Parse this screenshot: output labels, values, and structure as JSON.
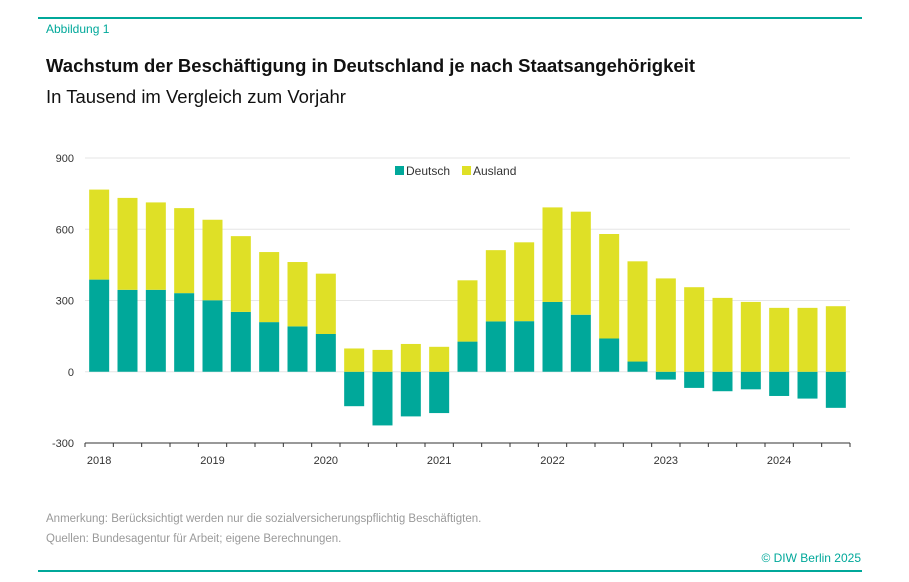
{
  "figure_label": "Abbildung 1",
  "title": "Wachstum der Beschäftigung in Deutschland je nach Staatsangehörigkeit",
  "subtitle": "In Tausend im Vergleich zum Vorjahr",
  "notes": {
    "remark": "Anmerkung: Berücksichtigt werden nur die sozialversicherungspflichtig Beschäftigten.",
    "sources": "Quellen: Bundesagentur für Arbeit; eigene Berechnungen."
  },
  "copyright": "© DIW Berlin 2025",
  "colors": {
    "accent": "#00a89a",
    "deutsch": "#00a89a",
    "ausland": "#dfe026"
  },
  "chart_data": {
    "type": "bar",
    "stacked": true,
    "title": "",
    "xlabel": "",
    "ylabel": "",
    "ylim": [
      -300,
      900
    ],
    "yticks": [
      900,
      600,
      300,
      0,
      -300
    ],
    "grid": true,
    "legend_position": "top-center",
    "year_labels": [
      "2018",
      "2019",
      "2020",
      "2021",
      "2022",
      "2023",
      "2024"
    ],
    "categories": [
      "2018 Q1",
      "2018 Q2",
      "2018 Q3",
      "2018 Q4",
      "2019 Q1",
      "2019 Q2",
      "2019 Q3",
      "2019 Q4",
      "2020 Q1",
      "2020 Q2",
      "2020 Q3",
      "2020 Q4",
      "2021 Q1",
      "2021 Q2",
      "2021 Q3",
      "2021 Q4",
      "2022 Q1",
      "2022 Q2",
      "2022 Q3",
      "2022 Q4",
      "2023 Q1",
      "2023 Q2",
      "2023 Q3",
      "2023 Q4",
      "2024 Q1",
      "2024 Q2",
      "2024 Q3"
    ],
    "series": [
      {
        "name": "Deutsch",
        "values": [
          388,
          345,
          345,
          331,
          301,
          252,
          209,
          191,
          159,
          -145,
          -226,
          -188,
          -174,
          127,
          212,
          213,
          294,
          240,
          140,
          43,
          -33,
          -68,
          -82,
          -74,
          -102,
          -113,
          -152
        ]
      },
      {
        "name": "Ausland",
        "values": [
          379,
          387,
          368,
          358,
          339,
          319,
          295,
          271,
          254,
          98,
          92,
          117,
          105,
          258,
          300,
          332,
          398,
          434,
          440,
          422,
          393,
          356,
          311,
          294,
          269,
          269,
          276
        ]
      }
    ]
  }
}
